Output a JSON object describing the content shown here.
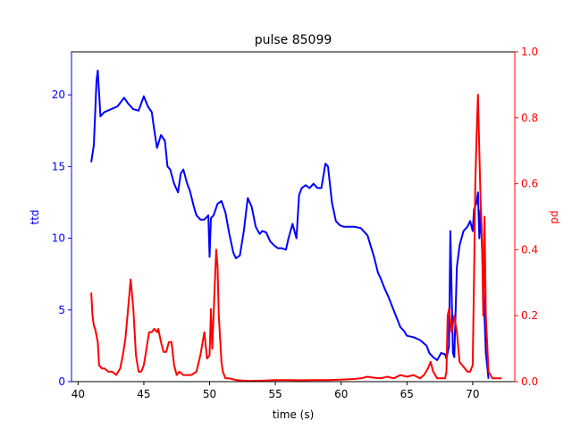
{
  "chart_data": {
    "type": "line",
    "title": "pulse 85099",
    "xlabel": "time (s)",
    "ylabel_left": "ttd",
    "ylabel_right": "pd",
    "xlim": [
      39.5,
      73.2
    ],
    "ylim_left": [
      0,
      23
    ],
    "ylim_right": [
      0,
      1.0
    ],
    "x_ticks": [
      40,
      45,
      50,
      55,
      60,
      65,
      70
    ],
    "y_ticks_left": [
      0,
      5,
      10,
      15,
      20
    ],
    "y_ticks_right": [
      0.0,
      0.2,
      0.4,
      0.6,
      0.8,
      1.0
    ],
    "grid": false,
    "colors": {
      "left": "#0000ff",
      "right": "#ff0000",
      "axes": "#000000"
    },
    "series": [
      {
        "axis": "left",
        "color": "#0000ff",
        "x": [
          41.0,
          41.2,
          41.4,
          41.5,
          41.7,
          42.0,
          42.5,
          43.0,
          43.5,
          43.8,
          44.2,
          44.6,
          45.0,
          45.3,
          45.6,
          45.8,
          46.0,
          46.3,
          46.6,
          46.8,
          47.0,
          47.3,
          47.6,
          47.8,
          48.0,
          48.3,
          48.5,
          48.8,
          49.0,
          49.3,
          49.6,
          49.9,
          50.0,
          50.1,
          50.3,
          50.6,
          50.9,
          51.2,
          51.5,
          51.8,
          52.0,
          52.3,
          52.6,
          52.9,
          53.2,
          53.5,
          53.8,
          54.0,
          54.3,
          54.6,
          54.9,
          55.2,
          55.5,
          55.8,
          56.0,
          56.3,
          56.6,
          56.8,
          57.0,
          57.3,
          57.6,
          57.9,
          58.2,
          58.5,
          58.8,
          59.0,
          59.3,
          59.6,
          59.9,
          60.2,
          60.5,
          61.0,
          61.5,
          62.0,
          62.5,
          62.8,
          63.0,
          63.3,
          63.6,
          63.9,
          64.2,
          64.5,
          64.8,
          65.0,
          65.5,
          66.0,
          66.5,
          66.7,
          67.0,
          67.3,
          67.6,
          67.9,
          68.0,
          68.2,
          68.3,
          68.4,
          68.5,
          68.6,
          68.8,
          69.0,
          69.3,
          69.6,
          69.8,
          70.0,
          70.1,
          70.3,
          70.4,
          70.5,
          70.6,
          70.8,
          71.0,
          71.2
        ],
        "y": [
          15.3,
          16.5,
          21.0,
          21.7,
          18.5,
          18.8,
          19.0,
          19.2,
          19.8,
          19.4,
          19.0,
          18.9,
          19.9,
          19.2,
          18.8,
          17.5,
          16.3,
          17.2,
          16.8,
          15.0,
          14.8,
          13.8,
          13.2,
          14.5,
          14.8,
          13.8,
          13.3,
          12.2,
          11.6,
          11.3,
          11.3,
          11.6,
          8.7,
          11.4,
          11.6,
          12.4,
          12.6,
          11.8,
          10.3,
          9.0,
          8.6,
          8.8,
          10.5,
          12.8,
          12.2,
          10.8,
          10.3,
          10.5,
          10.4,
          9.8,
          9.5,
          9.3,
          9.3,
          9.2,
          10.0,
          11.0,
          10.0,
          13.0,
          13.5,
          13.7,
          13.5,
          13.8,
          13.5,
          13.5,
          15.2,
          15.0,
          12.5,
          11.2,
          10.9,
          10.8,
          10.8,
          10.8,
          10.7,
          10.2,
          8.7,
          7.6,
          7.2,
          6.5,
          5.9,
          5.2,
          4.5,
          3.8,
          3.5,
          3.2,
          3.1,
          2.9,
          2.5,
          2.0,
          1.7,
          1.5,
          2.0,
          1.9,
          1.6,
          2.5,
          10.5,
          6.0,
          2.0,
          1.7,
          8.0,
          9.5,
          10.5,
          10.8,
          11.2,
          10.5,
          12.0,
          12.5,
          13.2,
          10.0,
          12.0,
          7.0,
          2.0,
          0.2
        ]
      },
      {
        "axis": "right",
        "color": "#ff0000",
        "x": [
          41.0,
          41.1,
          41.2,
          41.3,
          41.5,
          41.6,
          41.8,
          42.0,
          42.3,
          42.6,
          42.9,
          43.2,
          43.4,
          43.6,
          43.8,
          44.0,
          44.2,
          44.4,
          44.6,
          44.8,
          45.0,
          45.2,
          45.4,
          45.6,
          45.8,
          46.0,
          46.1,
          46.3,
          46.5,
          46.7,
          46.9,
          47.1,
          47.3,
          47.5,
          47.7,
          48.0,
          48.3,
          48.6,
          49.0,
          49.3,
          49.6,
          49.8,
          50.0,
          50.1,
          50.2,
          50.4,
          50.5,
          50.6,
          50.7,
          50.9,
          51.0,
          51.2,
          51.5,
          52.0,
          53.0,
          54.0,
          55.0,
          56.0,
          57.0,
          58.0,
          59.0,
          60.0,
          61.0,
          61.5,
          62.0,
          62.5,
          63.0,
          63.5,
          64.0,
          64.5,
          65.0,
          65.5,
          66.0,
          66.3,
          66.6,
          66.8,
          67.0,
          67.3,
          67.6,
          67.9,
          68.0,
          68.1,
          68.2,
          68.3,
          68.4,
          68.6,
          68.8,
          69.0,
          69.2,
          69.4,
          69.6,
          69.8,
          70.0,
          70.1,
          70.2,
          70.3,
          70.4,
          70.5,
          70.6,
          70.7,
          70.8,
          70.9,
          71.0,
          71.2,
          71.5,
          71.8,
          72.2
        ],
        "y": [
          0.27,
          0.2,
          0.17,
          0.16,
          0.12,
          0.05,
          0.04,
          0.04,
          0.03,
          0.03,
          0.02,
          0.04,
          0.08,
          0.13,
          0.22,
          0.31,
          0.22,
          0.08,
          0.03,
          0.03,
          0.05,
          0.1,
          0.15,
          0.15,
          0.16,
          0.15,
          0.16,
          0.12,
          0.09,
          0.09,
          0.12,
          0.12,
          0.05,
          0.02,
          0.03,
          0.02,
          0.02,
          0.02,
          0.03,
          0.08,
          0.15,
          0.07,
          0.08,
          0.22,
          0.1,
          0.3,
          0.4,
          0.35,
          0.2,
          0.06,
          0.03,
          0.01,
          0.01,
          0.005,
          0.002,
          0.003,
          0.005,
          0.005,
          0.004,
          0.005,
          0.005,
          0.006,
          0.008,
          0.01,
          0.015,
          0.012,
          0.01,
          0.015,
          0.01,
          0.02,
          0.015,
          0.02,
          0.01,
          0.02,
          0.04,
          0.06,
          0.03,
          0.01,
          0.01,
          0.01,
          0.03,
          0.2,
          0.22,
          0.18,
          0.15,
          0.2,
          0.15,
          0.06,
          0.05,
          0.04,
          0.03,
          0.03,
          0.05,
          0.32,
          0.6,
          0.75,
          0.87,
          0.7,
          0.55,
          0.45,
          0.2,
          0.5,
          0.2,
          0.03,
          0.01,
          0.01,
          0.01
        ]
      }
    ]
  }
}
